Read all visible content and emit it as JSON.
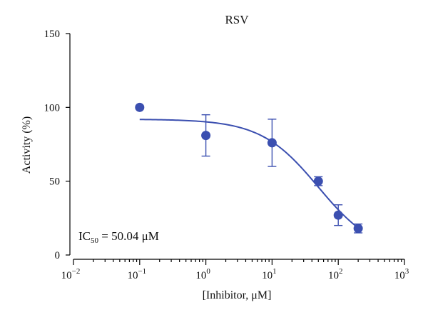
{
  "chart_data": {
    "type": "scatter",
    "title": "RSV",
    "xlabel": "[Inhibitor, μM]",
    "ylabel": "Activity (%)",
    "xscale": "log",
    "xlim": [
      0.01,
      1000
    ],
    "ylim": [
      0,
      150
    ],
    "x_ticks": [
      {
        "base": "10",
        "exp": "−2"
      },
      {
        "base": "10",
        "exp": "−1"
      },
      {
        "base": "10",
        "exp": "0"
      },
      {
        "base": "10",
        "exp": "1"
      },
      {
        "base": "10",
        "exp": "2"
      },
      {
        "base": "10",
        "exp": "3"
      }
    ],
    "y_ticks": [
      "0",
      "50",
      "100",
      "150"
    ],
    "grid": false,
    "color": "#3b4fb0",
    "series": [
      {
        "points": [
          {
            "x": 0.1,
            "y": 100,
            "err": 0
          },
          {
            "x": 1,
            "y": 81,
            "err": 14
          },
          {
            "x": 10,
            "y": 76,
            "err": 16
          },
          {
            "x": 50,
            "y": 50,
            "err": 3
          },
          {
            "x": 100,
            "y": 27,
            "err": 7
          },
          {
            "x": 200,
            "y": 18,
            "err": 3
          }
        ]
      }
    ],
    "fit": {
      "top": 92,
      "bottom": 0,
      "ic50": 50.04,
      "hill": 1
    },
    "annotation": {
      "prefix": "IC",
      "subscript": "50",
      "suffix": " = 50.04 μM"
    }
  }
}
